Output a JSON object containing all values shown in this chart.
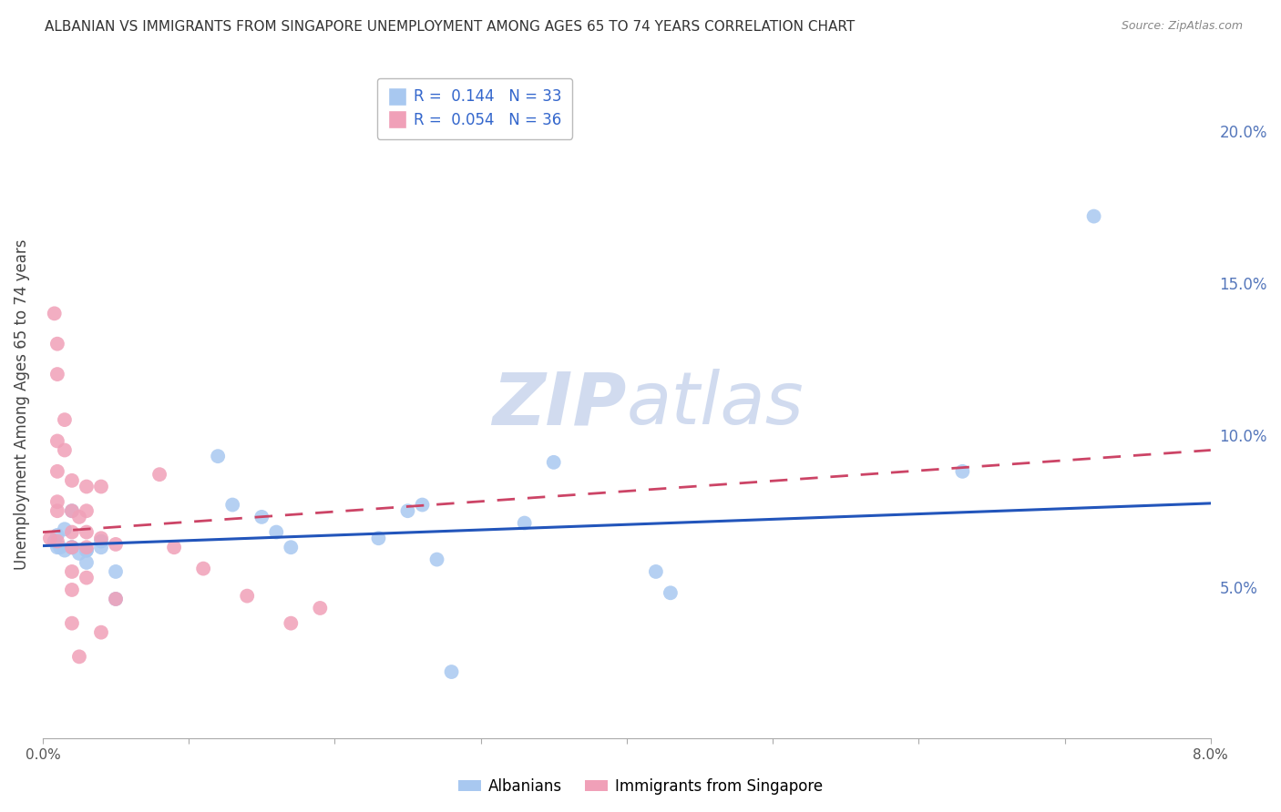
{
  "title": "ALBANIAN VS IMMIGRANTS FROM SINGAPORE UNEMPLOYMENT AMONG AGES 65 TO 74 YEARS CORRELATION CHART",
  "source": "Source: ZipAtlas.com",
  "ylabel": "Unemployment Among Ages 65 to 74 years",
  "xlabel": "",
  "xlim": [
    0.0,
    0.08
  ],
  "ylim": [
    0.0,
    0.22
  ],
  "yticks_right": [
    0.0,
    0.05,
    0.1,
    0.15,
    0.2
  ],
  "ytick_labels_right": [
    "",
    "5.0%",
    "10.0%",
    "15.0%",
    "20.0%"
  ],
  "xtick_positions": [
    0.0,
    0.01,
    0.02,
    0.03,
    0.04,
    0.05,
    0.06,
    0.07,
    0.08
  ],
  "xtick_labels": [
    "0.0%",
    "",
    "",
    "",
    "",
    "",
    "",
    "",
    "8.0%"
  ],
  "R_albanian": 0.144,
  "N_albanian": 33,
  "R_singapore": 0.054,
  "N_singapore": 36,
  "albanian_color": "#a8c8f0",
  "singapore_color": "#f0a0b8",
  "albanian_line_color": "#2255bb",
  "singapore_line_color": "#cc4466",
  "watermark_color": "#ccd8ee",
  "background_color": "#ffffff",
  "grid_color": "#cccccc",
  "axis_label_color": "#5577bb",
  "title_color": "#333333",
  "albanian_x": [
    0.0008,
    0.001,
    0.001,
    0.0012,
    0.0015,
    0.0015,
    0.002,
    0.002,
    0.002,
    0.0025,
    0.003,
    0.003,
    0.003,
    0.004,
    0.004,
    0.005,
    0.005,
    0.012,
    0.013,
    0.015,
    0.016,
    0.017,
    0.023,
    0.025,
    0.026,
    0.027,
    0.028,
    0.033,
    0.035,
    0.042,
    0.043,
    0.063,
    0.072
  ],
  "albanian_y": [
    0.065,
    0.063,
    0.067,
    0.063,
    0.062,
    0.069,
    0.063,
    0.075,
    0.063,
    0.061,
    0.062,
    0.058,
    0.062,
    0.063,
    0.065,
    0.046,
    0.055,
    0.093,
    0.077,
    0.073,
    0.068,
    0.063,
    0.066,
    0.075,
    0.077,
    0.059,
    0.022,
    0.071,
    0.091,
    0.055,
    0.048,
    0.088,
    0.172
  ],
  "singapore_x": [
    0.0005,
    0.0008,
    0.001,
    0.001,
    0.001,
    0.001,
    0.001,
    0.001,
    0.001,
    0.0015,
    0.0015,
    0.002,
    0.002,
    0.002,
    0.002,
    0.002,
    0.002,
    0.002,
    0.0025,
    0.0025,
    0.003,
    0.003,
    0.003,
    0.003,
    0.003,
    0.004,
    0.004,
    0.004,
    0.005,
    0.005,
    0.008,
    0.009,
    0.011,
    0.014,
    0.017,
    0.019
  ],
  "singapore_y": [
    0.066,
    0.14,
    0.13,
    0.12,
    0.098,
    0.088,
    0.078,
    0.075,
    0.065,
    0.105,
    0.095,
    0.085,
    0.075,
    0.068,
    0.063,
    0.055,
    0.049,
    0.038,
    0.073,
    0.027,
    0.083,
    0.075,
    0.068,
    0.063,
    0.053,
    0.083,
    0.066,
    0.035,
    0.064,
    0.046,
    0.087,
    0.063,
    0.056,
    0.047,
    0.038,
    0.043
  ],
  "albanian_trend": [
    0.0635,
    0.0775
  ],
  "singapore_trend": [
    0.068,
    0.095
  ]
}
